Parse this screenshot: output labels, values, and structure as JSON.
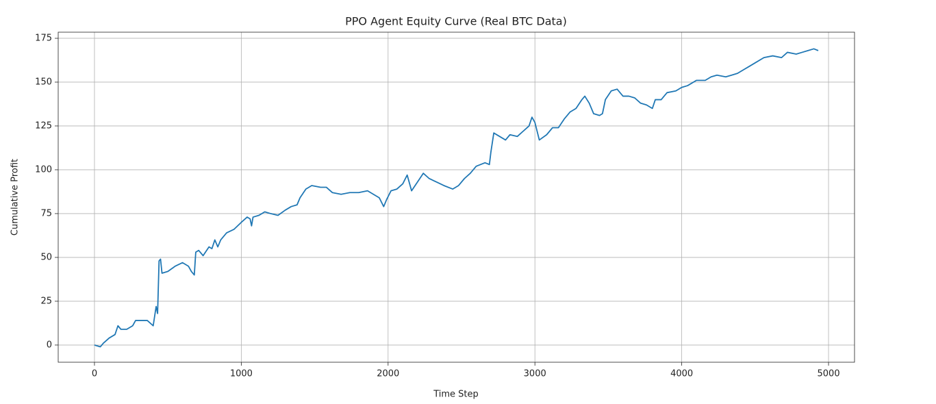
{
  "chart_data": {
    "type": "line",
    "title": "PPO Agent Equity Curve (Real BTC Data)",
    "x_label": "Time Step",
    "y_label": "Cumulative Profit",
    "xlim": [
      -247,
      5177
    ],
    "ylim": [
      -9.8,
      178.5
    ],
    "xticks": [
      0,
      1000,
      2000,
      3000,
      4000,
      5000
    ],
    "yticks": [
      0,
      25,
      50,
      75,
      100,
      125,
      150,
      175
    ],
    "grid": true,
    "x": [
      0,
      40,
      60,
      100,
      140,
      160,
      180,
      220,
      260,
      280,
      320,
      360,
      400,
      420,
      430,
      440,
      450,
      460,
      500,
      550,
      600,
      640,
      660,
      680,
      690,
      710,
      740,
      780,
      800,
      820,
      840,
      860,
      900,
      950,
      1000,
      1040,
      1060,
      1070,
      1080,
      1120,
      1160,
      1200,
      1250,
      1300,
      1340,
      1380,
      1400,
      1440,
      1480,
      1540,
      1580,
      1620,
      1680,
      1740,
      1800,
      1860,
      1900,
      1940,
      1970,
      1990,
      2020,
      2060,
      2100,
      2130,
      2160,
      2200,
      2240,
      2280,
      2330,
      2380,
      2440,
      2480,
      2520,
      2560,
      2600,
      2660,
      2690,
      2700,
      2720,
      2760,
      2800,
      2830,
      2880,
      2920,
      2960,
      2980,
      3000,
      3030,
      3080,
      3120,
      3160,
      3200,
      3240,
      3280,
      3320,
      3340,
      3370,
      3400,
      3440,
      3460,
      3480,
      3520,
      3560,
      3600,
      3640,
      3680,
      3720,
      3760,
      3800,
      3820,
      3860,
      3900,
      3960,
      4000,
      4040,
      4100,
      4160,
      4200,
      4240,
      4300,
      4340,
      4380,
      4420,
      4460,
      4500,
      4560,
      4620,
      4680,
      4720,
      4780,
      4820,
      4860,
      4900,
      4930
    ],
    "series": [
      {
        "name": "equity",
        "color": "#1f77b4",
        "values": [
          0,
          -1,
          1,
          4,
          6,
          11,
          9,
          9,
          11,
          14,
          14,
          14,
          11,
          22,
          18,
          48,
          49,
          41,
          42,
          45,
          47,
          45,
          42,
          40,
          53,
          54,
          51,
          56,
          55,
          60,
          56,
          60,
          64,
          66,
          70,
          73,
          72,
          68,
          73,
          74,
          76,
          75,
          74,
          77,
          79,
          80,
          84,
          89,
          91,
          90,
          90,
          87,
          86,
          87,
          87,
          88,
          86,
          84,
          79,
          83,
          88,
          89,
          92,
          97,
          88,
          93,
          98,
          95,
          93,
          91,
          89,
          91,
          95,
          98,
          102,
          104,
          103,
          110,
          121,
          119,
          117,
          120,
          119,
          122,
          125,
          130,
          127,
          117,
          120,
          124,
          124,
          129,
          133,
          135,
          140,
          142,
          138,
          132,
          131,
          132,
          140,
          145,
          146,
          142,
          142,
          141,
          138,
          137,
          135,
          140,
          140,
          144,
          145,
          147,
          148,
          151,
          151,
          153,
          154,
          153,
          154,
          155,
          157,
          159,
          161,
          164,
          165,
          164,
          167,
          166,
          167,
          168,
          169,
          168
        ]
      }
    ]
  }
}
